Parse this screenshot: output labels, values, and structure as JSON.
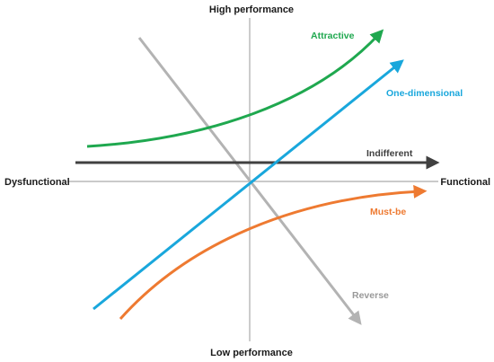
{
  "axes": {
    "top": "High performance",
    "bottom": "Low performance",
    "left": "Dysfunctional",
    "right": "Functional",
    "color": "#aaaaaa"
  },
  "curves": {
    "attractive": {
      "label": "Attractive",
      "color": "#1fa84f"
    },
    "one_dimensional": {
      "label": "One-dimensional",
      "color": "#19a7dc"
    },
    "indifferent": {
      "label": "Indifferent",
      "color": "#404040"
    },
    "must_be": {
      "label": "Must-be",
      "color": "#ee7a31"
    },
    "reverse": {
      "label": "Reverse",
      "color": "#b3b3b3"
    }
  }
}
